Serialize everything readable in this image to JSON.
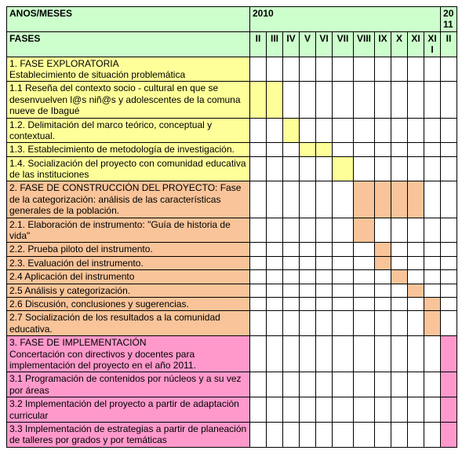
{
  "header": {
    "row1_label": "ANOS/MESES",
    "row2_label": "FASES",
    "year1": "2010",
    "year2": "2011",
    "months": [
      "II",
      "III",
      "IV",
      "V",
      "VI",
      "VII",
      "VIII",
      "IX",
      "X",
      "XI",
      "XII",
      "II"
    ]
  },
  "colors": {
    "header_bg": "#ccffcc",
    "yellow": "#ffff99",
    "orange": "#f9c499",
    "pink": "#ff99cc",
    "white": "#ffffff",
    "border": "#000000"
  },
  "rows": [
    {
      "text": "1. FASE EXPLORATORIA\nEstablecimiento de situación problemática",
      "desc_color": "yellow",
      "cells": [
        "white",
        "white",
        "white",
        "white",
        "white",
        "white",
        "white",
        "white",
        "white",
        "white",
        "white",
        "white"
      ]
    },
    {
      "text": "1.1 Reseña del contexto socio - cultural en que se desenvuelven l@s niñ@s y adolescentes de la comuna nueve de Ibagué",
      "desc_color": "yellow",
      "cells": [
        "yellow",
        "yellow",
        "white",
        "white",
        "white",
        "white",
        "white",
        "white",
        "white",
        "white",
        "white",
        "white"
      ]
    },
    {
      "text": "1.2. Delimitación del marco teórico, conceptual y contextual.",
      "desc_color": "yellow",
      "cells": [
        "white",
        "white",
        "yellow",
        "white",
        "white",
        "white",
        "white",
        "white",
        "white",
        "white",
        "white",
        "white"
      ]
    },
    {
      "text": "1.3. Establecimiento de metodología de investigación.",
      "desc_color": "yellow",
      "cells": [
        "white",
        "white",
        "white",
        "yellow",
        "yellow",
        "white",
        "white",
        "white",
        "white",
        "white",
        "white",
        "white"
      ]
    },
    {
      "text": "1.4. Socialización del proyecto con comunidad educativa de las instituciones",
      "desc_color": "yellow",
      "cells": [
        "white",
        "white",
        "white",
        "white",
        "white",
        "yellow",
        "white",
        "white",
        "white",
        "white",
        "white",
        "white"
      ]
    },
    {
      "text": "2. FASE DE CONSTRUCCIÓN DEL PROYECTO: Fase de la categorización: análisis de las características generales de la población.",
      "desc_color": "orange",
      "cells": [
        "white",
        "white",
        "white",
        "white",
        "white",
        "white",
        "orange",
        "orange",
        "orange",
        "orange",
        "white",
        "white"
      ]
    },
    {
      "text": "2.1. Elaboración de instrumento: \"Guía de historia de vida\"",
      "desc_color": "orange",
      "cells": [
        "white",
        "white",
        "white",
        "white",
        "white",
        "white",
        "orange",
        "white",
        "white",
        "white",
        "white",
        "white"
      ]
    },
    {
      "text": "2.2. Prueba piloto del instrumento.",
      "desc_color": "orange",
      "cells": [
        "white",
        "white",
        "white",
        "white",
        "white",
        "white",
        "white",
        "orange",
        "white",
        "white",
        "white",
        "white"
      ]
    },
    {
      "text": "2.3. Evaluación del instrumento.",
      "desc_color": "orange",
      "cells": [
        "white",
        "white",
        "white",
        "white",
        "white",
        "white",
        "white",
        "orange",
        "white",
        "white",
        "white",
        "white"
      ]
    },
    {
      "text": "2.4 Aplicación del instrumento",
      "desc_color": "orange",
      "cells": [
        "white",
        "white",
        "white",
        "white",
        "white",
        "white",
        "white",
        "white",
        "orange",
        "white",
        "white",
        "white"
      ]
    },
    {
      "text": "2.5 Análisis y categorización.",
      "desc_color": "orange",
      "cells": [
        "white",
        "white",
        "white",
        "white",
        "white",
        "white",
        "white",
        "white",
        "white",
        "orange",
        "white",
        "white"
      ]
    },
    {
      "text": "2.6 Discusión, conclusiones y sugerencias.",
      "desc_color": "orange",
      "cells": [
        "white",
        "white",
        "white",
        "white",
        "white",
        "white",
        "white",
        "white",
        "white",
        "white",
        "orange",
        "white"
      ]
    },
    {
      "text": "2.7 Socialización de los resultados a la comunidad educativa.",
      "desc_color": "orange",
      "cells": [
        "white",
        "white",
        "white",
        "white",
        "white",
        "white",
        "white",
        "white",
        "white",
        "white",
        "orange",
        "white"
      ]
    },
    {
      "text": "3. FASE DE IMPLEMENTACIÓN\nConcertación con directivos y docentes para implementación del proyecto en el año 2011.",
      "desc_color": "pink",
      "cells": [
        "white",
        "white",
        "white",
        "white",
        "white",
        "white",
        "white",
        "white",
        "white",
        "white",
        "white",
        "pink"
      ]
    },
    {
      "text": "3.1 Programación de contenidos por núcleos y a su vez por áreas",
      "desc_color": "pink",
      "cells": [
        "white",
        "white",
        "white",
        "white",
        "white",
        "white",
        "white",
        "white",
        "white",
        "white",
        "white",
        "pink"
      ]
    },
    {
      "text": "3.2 Implementación del proyecto a partir de adaptación curricular",
      "desc_color": "pink",
      "cells": [
        "white",
        "white",
        "white",
        "white",
        "white",
        "white",
        "white",
        "white",
        "white",
        "white",
        "white",
        "pink"
      ]
    },
    {
      "text": "3.3 Implementación de estrategias a partir de planeación de talleres por grados y por temáticas",
      "desc_color": "pink",
      "cells": [
        "white",
        "white",
        "white",
        "white",
        "white",
        "white",
        "white",
        "white",
        "white",
        "white",
        "white",
        "pink"
      ]
    }
  ]
}
